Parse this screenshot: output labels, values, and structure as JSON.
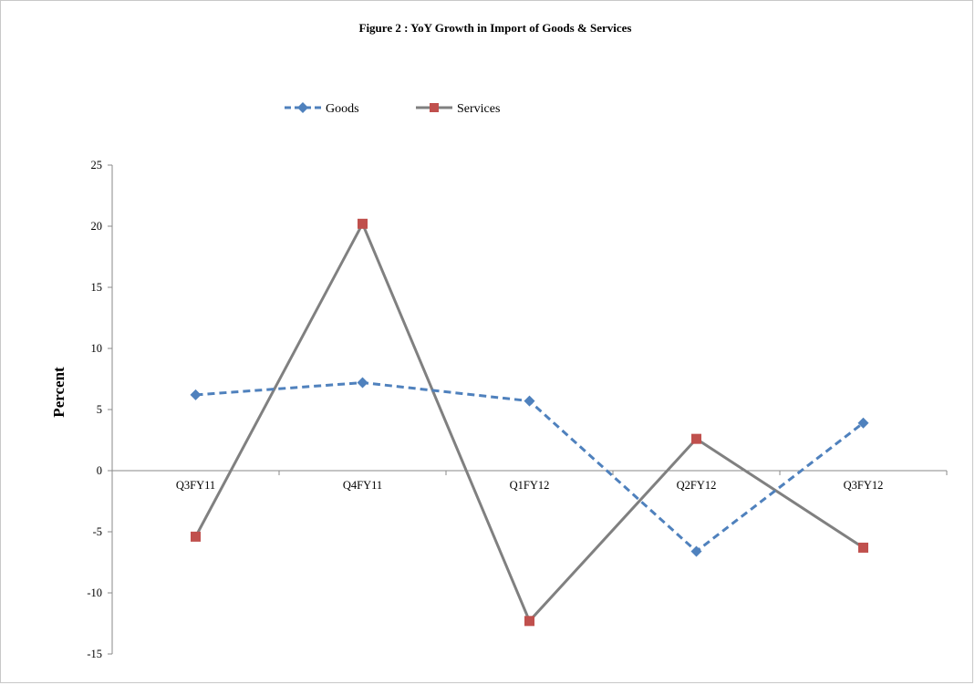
{
  "chart_data": {
    "type": "line",
    "title": "Figure 2 : YoY Growth in Import of Goods & Services",
    "xlabel": "",
    "ylabel": "Percent",
    "categories": [
      "Q3FY11",
      "Q4FY11",
      "Q1FY12",
      "Q2FY12",
      "Q3FY12"
    ],
    "ylim": [
      -15,
      25
    ],
    "yticks": [
      "25",
      "20",
      "15",
      "10",
      "5",
      "0",
      "-5",
      "-10",
      "-15"
    ],
    "ytick_values": [
      25,
      20,
      15,
      10,
      5,
      0,
      -5,
      -10,
      -15
    ],
    "grid": false,
    "legend_position": "top-center",
    "series": [
      {
        "name": "Goods",
        "values": [
          6.2,
          7.2,
          5.7,
          -6.6,
          3.9
        ],
        "color": "#4F81BD",
        "line_style": "dashed",
        "marker": "diamond"
      },
      {
        "name": "Services",
        "values": [
          -5.4,
          20.2,
          -12.3,
          2.6,
          -6.3
        ],
        "color": "#808080",
        "marker_color": "#C0504D",
        "line_style": "solid",
        "marker": "square"
      }
    ]
  }
}
